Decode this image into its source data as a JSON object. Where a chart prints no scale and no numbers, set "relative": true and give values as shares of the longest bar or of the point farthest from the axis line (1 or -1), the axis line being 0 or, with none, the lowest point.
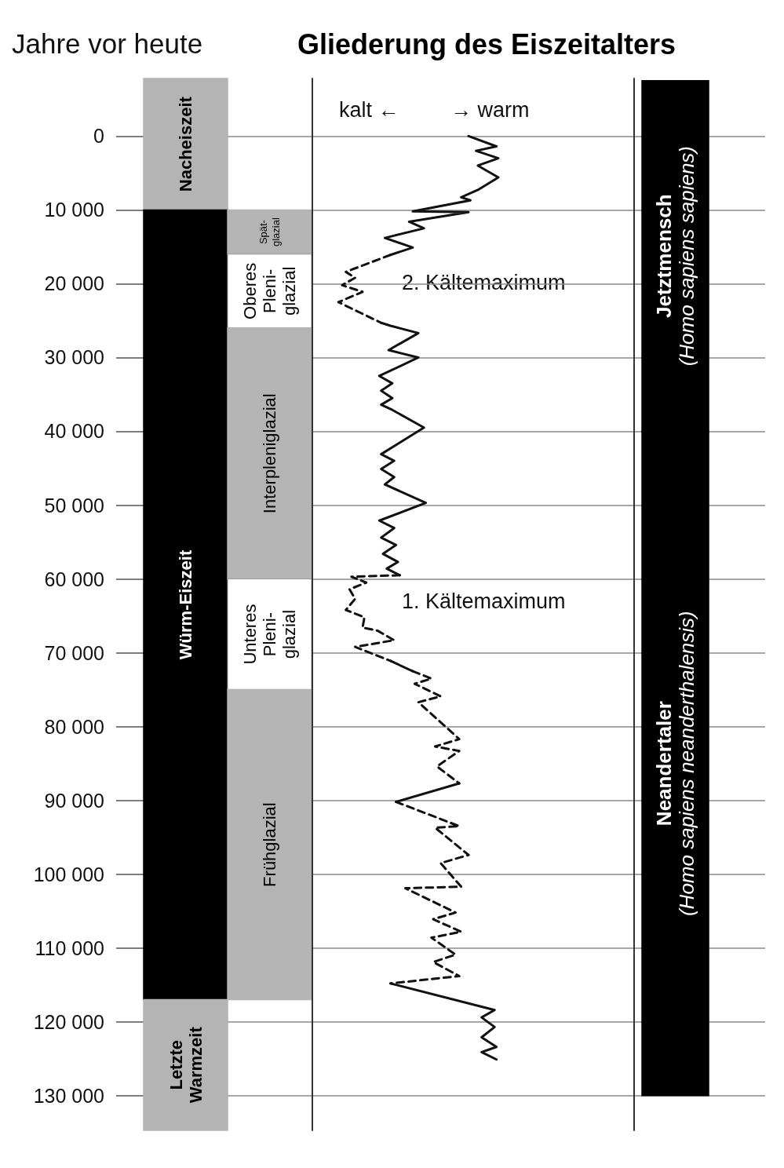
{
  "chart_data": [
    {
      "type": "bar",
      "ylabel": "Jahre vor heute",
      "categories": [
        null,
        null
      ],
      "series": [
        {
          "name": "Nacheiszeit",
          "color": "#b4b4b4",
          "values": [
            17800,
            null
          ],
          "base": [
            -7800,
            null
          ]
        },
        {
          "name": "Würm-Eiszeit",
          "color": "#000000",
          "values": [
            107000,
            null
          ],
          "base": [
            10000,
            null
          ]
        },
        {
          "name": "Letzte\nWarmzeit",
          "color": "#b4b4b4",
          "values": [
            17700,
            null
          ],
          "base": [
            117000,
            null
          ]
        },
        {
          "name": "Spät-\nglazial",
          "color": "#b4b4b4",
          "values": [
            null,
            6000
          ],
          "base": [
            null,
            10000
          ]
        },
        {
          "name": "Oberes\nPleni-\nglazial",
          "color": "#ffffff",
          "values": [
            null,
            10000
          ],
          "base": [
            null,
            16000
          ]
        },
        {
          "name": "Interpleniglazial",
          "color": "#b4b4b4",
          "values": [
            null,
            34000
          ],
          "base": [
            null,
            26000
          ]
        },
        {
          "name": "Unteres\nPleni-\nglazial",
          "color": "#ffffff",
          "values": [
            null,
            15000
          ],
          "base": [
            null,
            60000
          ]
        },
        {
          "name": "Frühglazial",
          "color": "#b4b4b4",
          "values": [
            null,
            42000
          ],
          "base": [
            null,
            75000
          ]
        }
      ],
      "ylim": [
        134700,
        -7800
      ],
      "yticks": [
        0,
        {
          "value": 10000,
          "label": "10 000"
        },
        {
          "value": 20000,
          "label": "20 000"
        },
        {
          "value": 30000,
          "label": "30 000"
        },
        {
          "value": 40000,
          "label": "40 000"
        },
        {
          "value": 50000,
          "label": "50 000"
        },
        {
          "value": 60000,
          "label": "60 000"
        },
        {
          "value": 70000,
          "label": "70 000"
        },
        {
          "value": 80000,
          "label": "80 000"
        },
        {
          "value": 90000,
          "label": "90 000"
        },
        {
          "value": 100000,
          "label": "100 000"
        },
        {
          "value": 110000,
          "label": "110 000"
        },
        {
          "value": 120000,
          "label": "120 000"
        },
        {
          "value": 130000,
          "label": "130 000"
        }
      ],
      "grid": "y",
      "tick_labels": "y"
    },
    {
      "type": "line",
      "orientation": "horizontal",
      "relative": true,
      "title": "Gliederung des Eiszeitalters",
      "annotations": [
        "kalt ←",
        "→ warm",
        "2. Kältemaximum",
        "1. Kältemaximum"
      ],
      "series": [
        {
          "color": "#111111",
          "line_style": "solid",
          "x": [
            0,
            1400,
            2000,
            3000,
            4000,
            5600,
            7300,
            8300,
            8700,
            10200,
            10300,
            11600,
            12500,
            13800,
            15100,
            16100
          ],
          "values": [
            0.84,
            0.99,
            0.88,
            1.0,
            0.89,
            1.0,
            0.89,
            0.8,
            0.85,
            0.54,
            0.84,
            0.52,
            0.6,
            0.39,
            0.54,
            0.42
          ]
        },
        {
          "color": "#111111",
          "line_style": "dashed",
          "x": [
            16100,
            18400,
            19200,
            20200,
            21100,
            22500,
            25300
          ],
          "values": [
            0.42,
            0.18,
            0.23,
            0.16,
            0.27,
            0.14,
            0.37
          ]
        },
        {
          "color": "#111111",
          "line_style": "solid",
          "x": [
            25300,
            25700,
            26700,
            29000,
            30000,
            32500,
            33500,
            34500,
            35500,
            36400,
            37100,
            39500,
            43100,
            44000,
            45100,
            46200,
            47200,
            49700,
            52100,
            53100,
            54400,
            55400,
            56600,
            57700,
            58600,
            59500
          ],
          "values": [
            0.37,
            0.42,
            0.57,
            0.41,
            0.57,
            0.36,
            0.43,
            0.37,
            0.43,
            0.37,
            0.43,
            0.6,
            0.37,
            0.44,
            0.37,
            0.44,
            0.39,
            0.61,
            0.36,
            0.44,
            0.37,
            0.45,
            0.38,
            0.46,
            0.4,
            0.47
          ]
        },
        {
          "color": "#111111",
          "line_style": "dashed",
          "x": [
            59500,
            59700,
            60500,
            61400,
            62700,
            64200,
            65200,
            66600,
            67000,
            68300,
            69200,
            71100
          ],
          "values": [
            0.47,
            0.21,
            0.29,
            0.2,
            0.23,
            0.18,
            0.28,
            0.27,
            0.35,
            0.44,
            0.23,
            0.42
          ]
        },
        {
          "color": "#111111",
          "line_style": "solid",
          "x": [
            71100,
            72500
          ],
          "values": [
            0.42,
            0.54
          ]
        },
        {
          "color": "#111111",
          "line_style": "dashed",
          "x": [
            72500,
            73500,
            74200,
            75900,
            76700,
            81700,
            82700,
            83300,
            85400,
            87700
          ],
          "values": [
            0.54,
            0.64,
            0.55,
            0.69,
            0.57,
            0.79,
            0.66,
            0.79,
            0.67,
            0.79
          ]
        },
        {
          "color": "#111111",
          "line_style": "solid",
          "x": [
            87700,
            90200
          ],
          "values": [
            0.79,
            0.45
          ]
        },
        {
          "color": "#111111",
          "line_style": "dashed",
          "x": [
            90200,
            93500,
            93700,
            97400,
            98500,
            101700,
            101900,
            105200,
            106100,
            107800,
            108600,
            110900,
            111900,
            113800,
            114800
          ],
          "values": [
            0.45,
            0.79,
            0.66,
            0.84,
            0.69,
            0.8,
            0.5,
            0.77,
            0.65,
            0.8,
            0.64,
            0.77,
            0.65,
            0.79,
            0.42
          ]
        },
        {
          "color": "#111111",
          "line_style": "solid",
          "x": [
            114800,
            118400,
            119400,
            120700,
            122100,
            123400,
            124100,
            125100
          ],
          "values": [
            0.42,
            0.98,
            0.91,
            0.98,
            0.91,
            0.99,
            0.91,
            0.99
          ]
        }
      ],
      "ylim": [
        134700,
        -7800
      ],
      "yticks": [
        0,
        10000,
        20000,
        30000,
        40000,
        50000,
        60000,
        70000,
        80000,
        90000,
        100000,
        110000,
        120000,
        130000
      ],
      "grid": "y",
      "tick_labels": false
    },
    {
      "type": "bar",
      "categories": [
        null
      ],
      "series": [
        {
          "name": "Jetztmensch\n(Homo sapiens sapiens)",
          "color": "#000000",
          "values": [
            47500
          ],
          "base": [
            -7500
          ]
        },
        {
          "name": "Neandertaler\n(Homo sapiens neanderthalensis)",
          "color": "#000000",
          "values": [
            90000
          ],
          "base": [
            40000
          ]
        }
      ],
      "ylim": [
        134700,
        -7800
      ],
      "yticks": [
        0,
        10000,
        20000,
        30000,
        40000,
        50000,
        60000,
        70000,
        80000,
        90000,
        100000,
        110000,
        120000,
        130000
      ],
      "grid": "y",
      "tick_labels": false
    }
  ]
}
